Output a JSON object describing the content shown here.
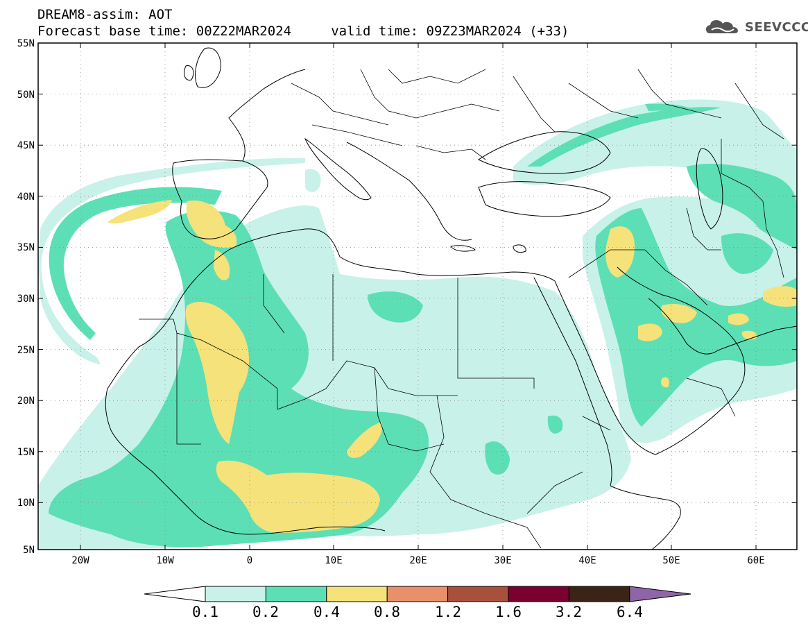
{
  "header": {
    "line1": "DREAM8-assim: AOT",
    "line2": "Forecast base time: 00Z22MAR2024     valid time: 09Z23MAR2024 (+33)"
  },
  "logo": {
    "text": "SEEVCCC",
    "icon": "cloud-icon"
  },
  "map": {
    "lat_ticks": [
      "55N",
      "50N",
      "45N",
      "40N",
      "35N",
      "30N",
      "25N",
      "20N",
      "15N",
      "10N",
      "5N"
    ],
    "lon_ticks": [
      "20W",
      "10W",
      "0",
      "10E",
      "20E",
      "30E",
      "40E",
      "50E",
      "60E"
    ],
    "lat_range": [
      5,
      55
    ],
    "lon_range": [
      -25,
      65
    ],
    "grid": "dotted"
  },
  "colorbar": {
    "levels": [
      "0.1",
      "0.2",
      "0.4",
      "0.8",
      "1.2",
      "1.6",
      "3.2",
      "6.4"
    ],
    "colors": [
      "#ffffff",
      "#c8f1e9",
      "#5cdfb4",
      "#f5e27a",
      "#e8906a",
      "#a8503c",
      "#7a0030",
      "#3a2418",
      "#8e66a8"
    ]
  },
  "palette": {
    "lvl1": "#c8f1e9",
    "lvl2": "#5cdfb4",
    "lvl3": "#f5e27a"
  }
}
